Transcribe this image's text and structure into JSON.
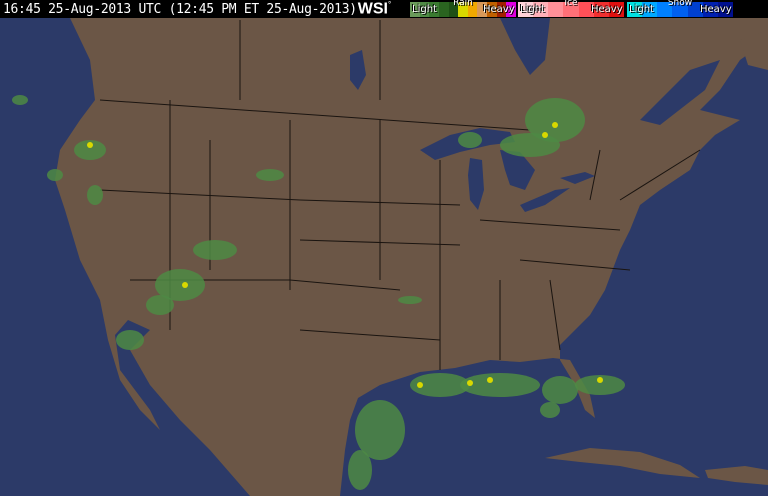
{
  "header": {
    "timestamp": "16:45 25-Aug-2013 UTC (12:45 PM ET 25-Aug-2013)",
    "logo": "WSI",
    "logo_mark": "°"
  },
  "legend": {
    "rain": {
      "title": "Rain",
      "light": "Light",
      "heavy": "Heavy",
      "colors": [
        "#6a9a5a",
        "#4e8a44",
        "#3a7a30",
        "#2a6420",
        "#1e5016",
        "#d8d800",
        "#f0a800",
        "#d89858",
        "#c06000",
        "#a02000",
        "#e000e0"
      ]
    },
    "ice": {
      "title": "Ice",
      "light": "Light",
      "heavy": "Heavy",
      "colors": [
        "#ffd0d8",
        "#ffb0b8",
        "#ff9098",
        "#ff7078",
        "#ff5058",
        "#f03030",
        "#e01010"
      ]
    },
    "snow": {
      "title": "Snow",
      "light": "Light",
      "heavy": "Heavy",
      "colors": [
        "#00e0e0",
        "#00a8ff",
        "#0080ff",
        "#0060f0",
        "#0040d0",
        "#0020b0",
        "#001090"
      ]
    }
  },
  "map": {
    "ocean_color": "#2c3a68",
    "land_color": "#6b5646",
    "border_color": "#1a1410"
  }
}
